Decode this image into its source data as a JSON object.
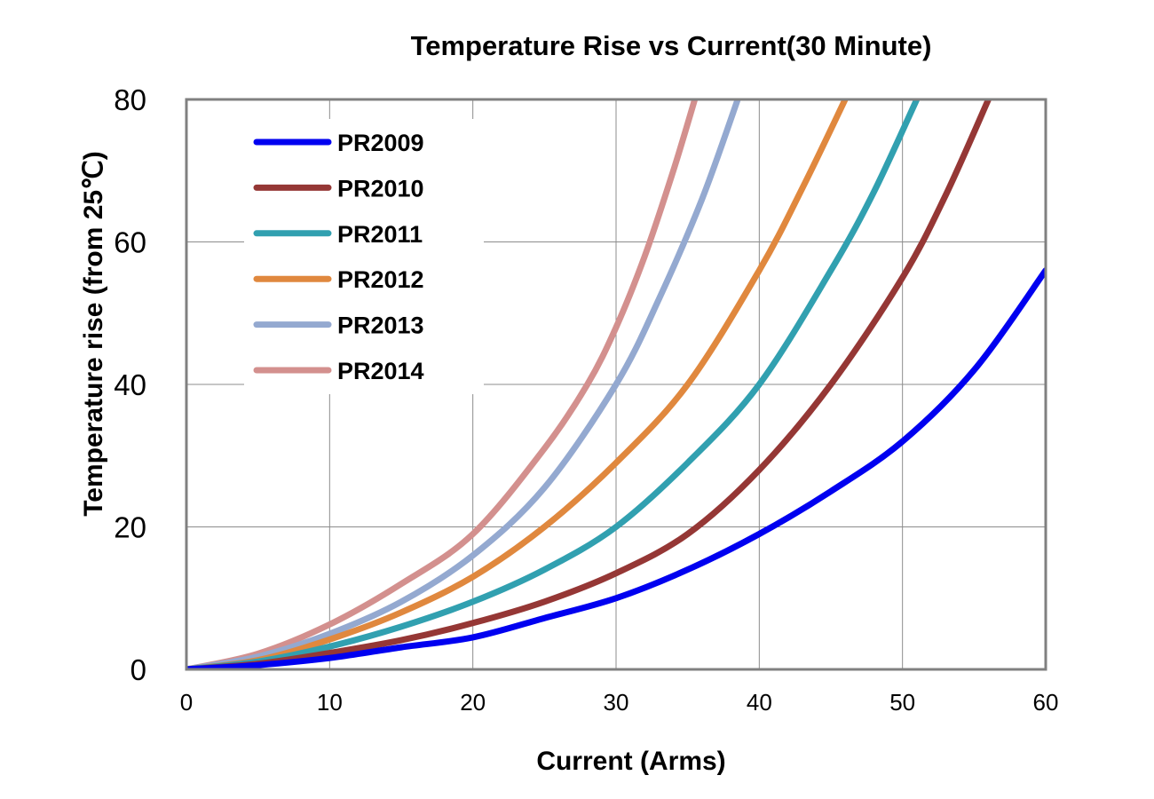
{
  "chart_data": {
    "type": "line",
    "title": "Temperature Rise vs Current(30 Minute)",
    "xlabel": "Current (Arms)",
    "ylabel": "Temperature rise (from 25℃)",
    "xlim": [
      0,
      60
    ],
    "ylim": [
      0,
      80
    ],
    "xticks": [
      "0",
      "10",
      "20",
      "30",
      "40",
      "50",
      "60"
    ],
    "yticks": [
      "0",
      "20",
      "40",
      "60",
      "80"
    ],
    "grid": true,
    "legend_position": "top-left",
    "series": [
      {
        "name": "PR2009",
        "color": "#0000f0",
        "x": [
          0,
          5,
          10,
          15,
          20,
          25,
          30,
          35,
          40,
          45,
          50,
          55,
          60
        ],
        "y": [
          0,
          0.6,
          1.6,
          3.1,
          4.5,
          7.2,
          10,
          14,
          19,
          25,
          32,
          42,
          56
        ]
      },
      {
        "name": "PR2010",
        "color": "#953735",
        "x": [
          0,
          5,
          10,
          15,
          20,
          25,
          30,
          35,
          40,
          45,
          50,
          53,
          56
        ],
        "y": [
          0,
          0.8,
          2.3,
          4.1,
          6.5,
          9.5,
          13.5,
          19,
          28,
          40,
          55,
          66.5,
          80
        ]
      },
      {
        "name": "PR2011",
        "color": "#31a0b0",
        "x": [
          0,
          5,
          10,
          15,
          20,
          25,
          30,
          35,
          40,
          45,
          48,
          51
        ],
        "y": [
          0,
          1.1,
          3.2,
          6.0,
          9.5,
          14,
          20,
          29,
          40,
          56,
          67,
          80
        ]
      },
      {
        "name": "PR2012",
        "color": "#e0883e",
        "x": [
          0,
          5,
          10,
          15,
          20,
          25,
          30,
          35,
          40,
          43,
          46
        ],
        "y": [
          0,
          1.3,
          4.2,
          8.0,
          13,
          20,
          29,
          40,
          56,
          67.5,
          80
        ]
      },
      {
        "name": "PR2013",
        "color": "#94a9d0",
        "x": [
          0,
          5,
          10,
          15,
          20,
          25,
          30,
          33,
          36,
          38.5
        ],
        "y": [
          0,
          1.8,
          5.0,
          9.5,
          16,
          25.5,
          40,
          52,
          66,
          80
        ]
      },
      {
        "name": "PR2014",
        "color": "#d3908e",
        "x": [
          0,
          5,
          10,
          15,
          20,
          25,
          28,
          30,
          32,
          34,
          35.5
        ],
        "y": [
          0,
          2.2,
          6.3,
          12,
          19,
          31,
          40,
          48,
          58,
          70,
          80
        ]
      }
    ]
  }
}
